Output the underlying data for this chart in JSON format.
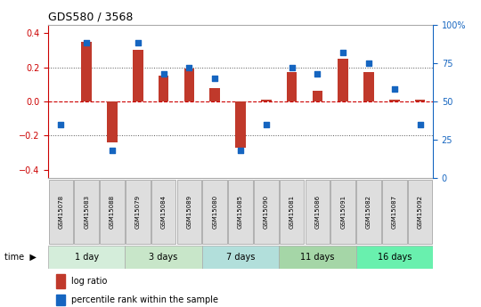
{
  "title": "GDS580 / 3568",
  "samples": [
    "GSM15078",
    "GSM15083",
    "GSM15088",
    "GSM15079",
    "GSM15084",
    "GSM15089",
    "GSM15080",
    "GSM15085",
    "GSM15090",
    "GSM15081",
    "GSM15086",
    "GSM15091",
    "GSM15082",
    "GSM15087",
    "GSM15092"
  ],
  "log_ratio": [
    0.0,
    0.35,
    -0.24,
    0.3,
    0.15,
    0.19,
    0.08,
    -0.27,
    0.01,
    0.17,
    0.06,
    0.25,
    0.17,
    0.01,
    0.01
  ],
  "percentile": [
    35,
    88,
    18,
    88,
    68,
    72,
    65,
    18,
    35,
    72,
    68,
    82,
    75,
    58,
    35
  ],
  "groups": [
    {
      "label": "1 day",
      "start": 0,
      "end": 3,
      "color": "#d4edda"
    },
    {
      "label": "3 days",
      "start": 3,
      "end": 6,
      "color": "#c8e6c9"
    },
    {
      "label": "7 days",
      "start": 6,
      "end": 9,
      "color": "#b2dfdb"
    },
    {
      "label": "11 days",
      "start": 9,
      "end": 12,
      "color": "#a5d6a7"
    },
    {
      "label": "16 days",
      "start": 12,
      "end": 15,
      "color": "#69f0ae"
    }
  ],
  "bar_color": "#c0392b",
  "dot_color": "#1565c0",
  "ylim": [
    -0.45,
    0.45
  ],
  "y2lim": [
    0,
    100
  ],
  "y_ticks": [
    -0.4,
    -0.2,
    0.0,
    0.2,
    0.4
  ],
  "y2_ticks": [
    0,
    25,
    50,
    75,
    100
  ],
  "y2_ticklabels": [
    "0",
    "25",
    "50",
    "75",
    "100%"
  ],
  "hline_color": "#cc0000",
  "grid_color": "#555555",
  "background_color": "#ffffff",
  "legend_bar_label": "log ratio",
  "legend_dot_label": "percentile rank within the sample"
}
